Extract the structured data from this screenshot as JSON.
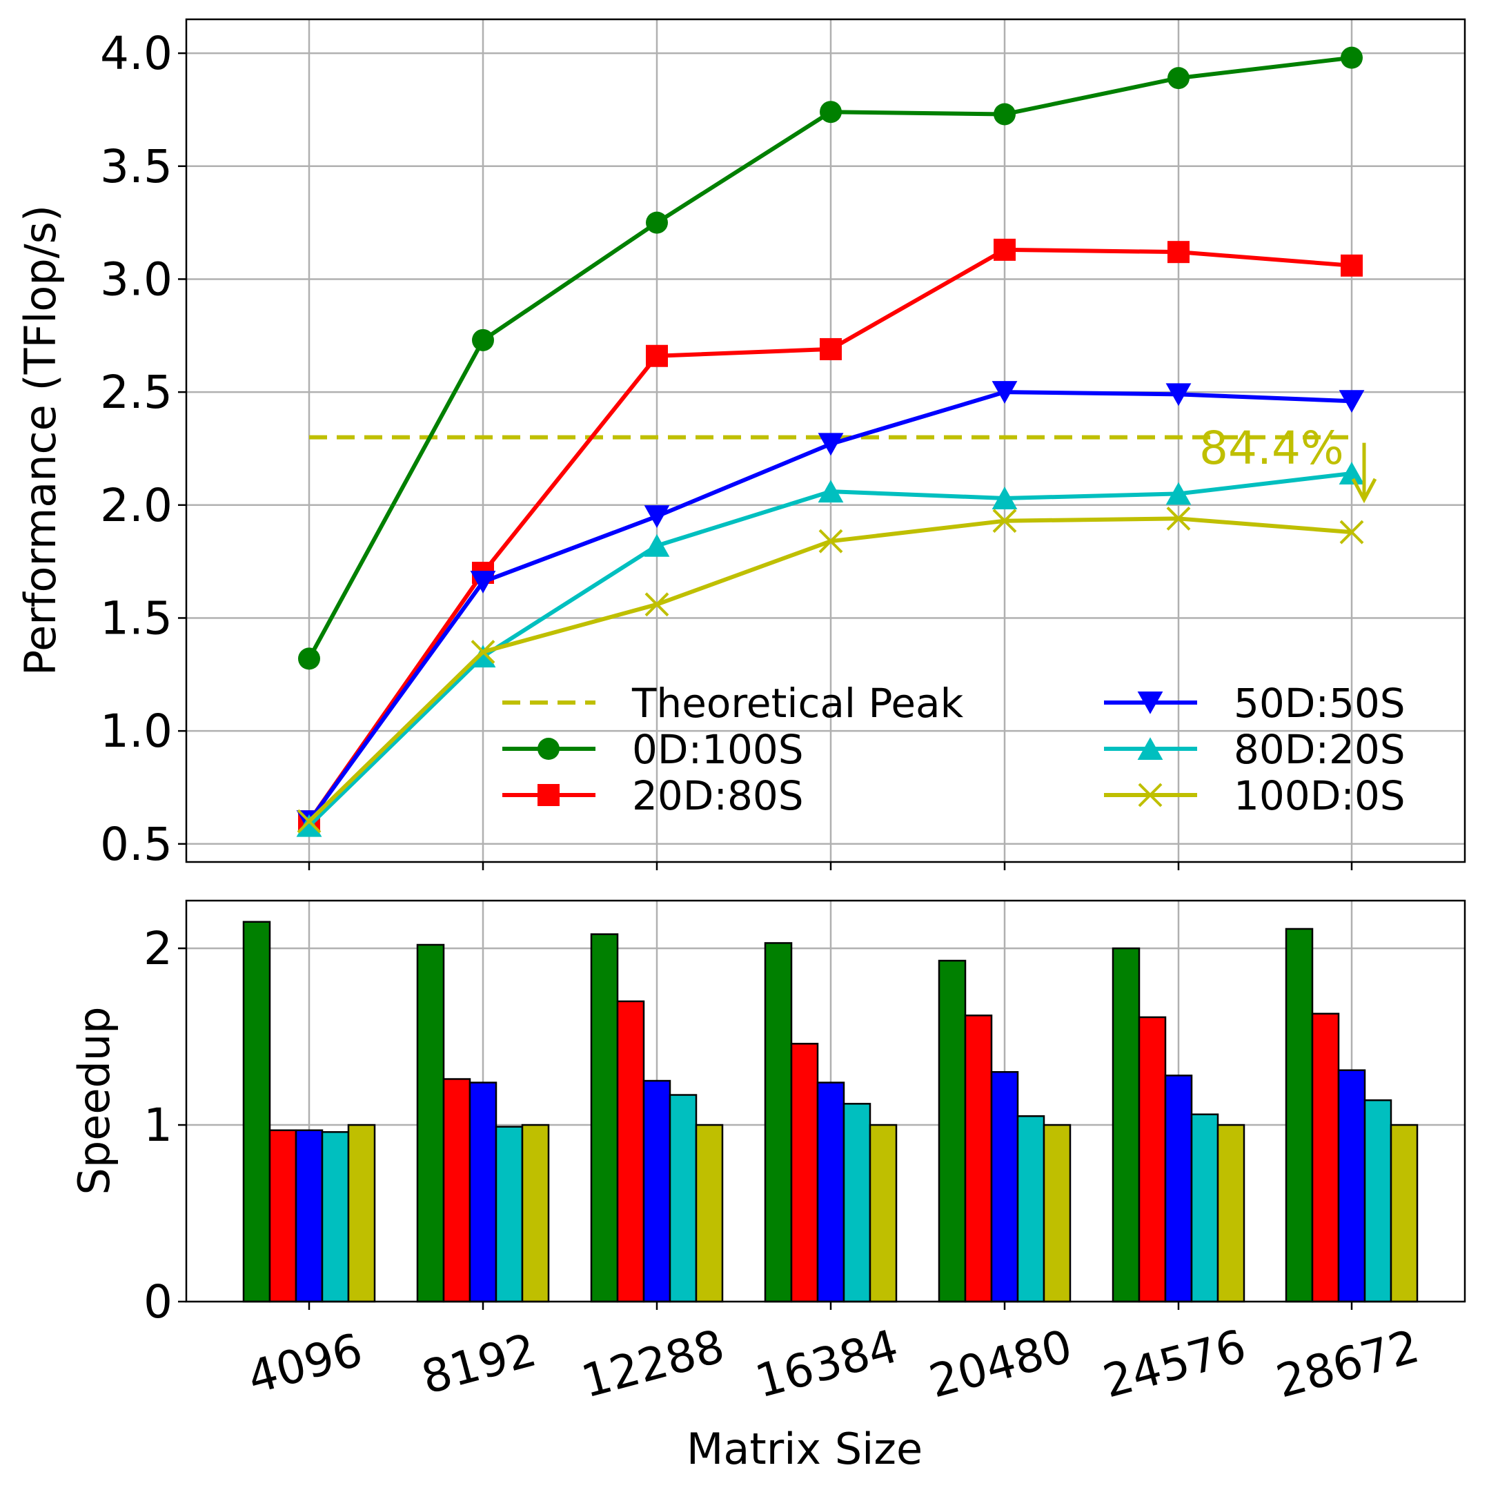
{
  "chart_data": [
    {
      "type": "line",
      "xlabel": "",
      "ylabel": "Performance (TFlop/s)",
      "categories": [
        "4096",
        "8192",
        "12288",
        "16384",
        "20480",
        "24576",
        "28672"
      ],
      "ylim": [
        0.42,
        4.15
      ],
      "yticks": [
        "0.5",
        "1.0",
        "1.5",
        "2.0",
        "2.5",
        "3.0",
        "3.5",
        "4.0"
      ],
      "grid": true,
      "legend_position": "lower-right, two columns",
      "reference_line": {
        "name": "Theoretical Peak",
        "value": 2.3,
        "color": "#bfbf00",
        "style": "dashed"
      },
      "annotation": {
        "text": "84.4%",
        "color": "#bfbf00"
      },
      "series": [
        {
          "name": "0D:100S",
          "color": "#008000",
          "marker": "circle",
          "values": [
            1.32,
            2.73,
            3.25,
            3.74,
            3.73,
            3.89,
            3.98
          ]
        },
        {
          "name": "20D:80S",
          "color": "#ff0000",
          "marker": "square",
          "values": [
            0.6,
            1.7,
            2.66,
            2.69,
            3.13,
            3.12,
            3.06
          ]
        },
        {
          "name": "50D:50S",
          "color": "#0000ff",
          "marker": "triangle-down",
          "values": [
            0.6,
            1.66,
            1.95,
            2.27,
            2.5,
            2.49,
            2.46
          ]
        },
        {
          "name": "80D:20S",
          "color": "#00bfbf",
          "marker": "triangle-up",
          "values": [
            0.58,
            1.33,
            1.82,
            2.06,
            2.03,
            2.05,
            2.14
          ]
        },
        {
          "name": "100D:0S",
          "color": "#bfbf00",
          "marker": "x",
          "values": [
            0.6,
            1.35,
            1.56,
            1.84,
            1.93,
            1.94,
            1.88
          ]
        }
      ]
    },
    {
      "type": "bar",
      "xlabel": "Matrix Size",
      "ylabel": "Speedup",
      "categories": [
        "4096",
        "8192",
        "12288",
        "16384",
        "20480",
        "24576",
        "28672"
      ],
      "ylim": [
        0,
        2.27
      ],
      "yticks": [
        "0",
        "1",
        "2"
      ],
      "grid": true,
      "series": [
        {
          "name": "0D:100S",
          "color": "#008000",
          "values": [
            2.15,
            2.02,
            2.08,
            2.03,
            1.93,
            2.0,
            2.11
          ]
        },
        {
          "name": "20D:80S",
          "color": "#ff0000",
          "values": [
            0.97,
            1.26,
            1.7,
            1.46,
            1.62,
            1.61,
            1.63
          ]
        },
        {
          "name": "50D:50S",
          "color": "#0000ff",
          "values": [
            0.97,
            1.24,
            1.25,
            1.24,
            1.3,
            1.28,
            1.31
          ]
        },
        {
          "name": "80D:20S",
          "color": "#00bfbf",
          "values": [
            0.96,
            0.99,
            1.17,
            1.12,
            1.05,
            1.06,
            1.14
          ]
        },
        {
          "name": "100D:0S",
          "color": "#bfbf00",
          "values": [
            1.0,
            1.0,
            1.0,
            1.0,
            1.0,
            1.0,
            1.0
          ]
        }
      ]
    }
  ]
}
